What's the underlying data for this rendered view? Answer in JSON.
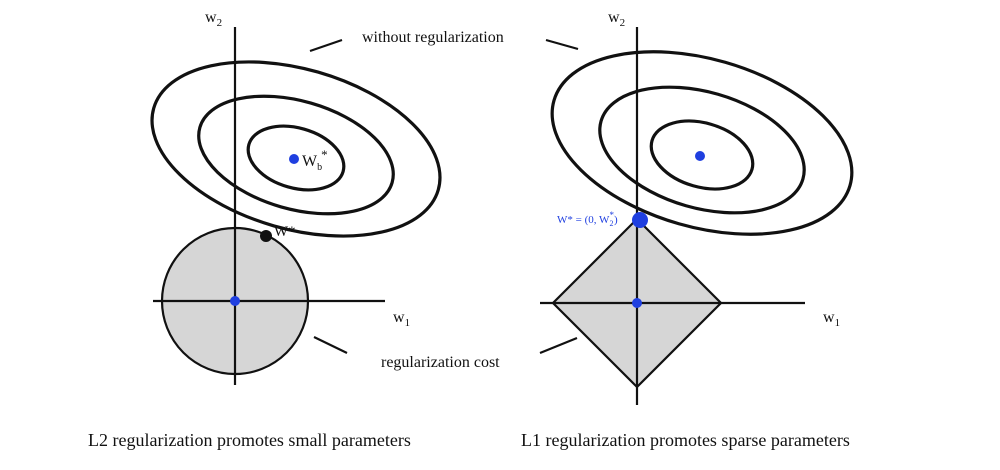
{
  "colors": {
    "line": "#111111",
    "fill": "#d6d6d6",
    "point": "#1f3fe0",
    "solution_l2": "#111111"
  },
  "annotations": {
    "without_regularization": "without regularization",
    "regularization_cost": "regularization cost"
  },
  "left_panel": {
    "axis_x_label": "w",
    "axis_x_sub": "1",
    "axis_y_label": "w",
    "axis_y_sub": "2",
    "optimum_label": "W",
    "optimum_sub": "b",
    "optimum_sup": "*",
    "solution_label": "W*",
    "caption": "L2 regularization promotes small parameters"
  },
  "right_panel": {
    "axis_x_label": "w",
    "axis_x_sub": "1",
    "axis_y_label": "w",
    "axis_y_sub": "2",
    "solution_label_prefix": "W* = (0, W",
    "solution_label_sub": "2",
    "solution_label_sup": "*",
    "solution_label_suffix": ")",
    "caption": "L1 regularization promotes sparse parameters"
  }
}
